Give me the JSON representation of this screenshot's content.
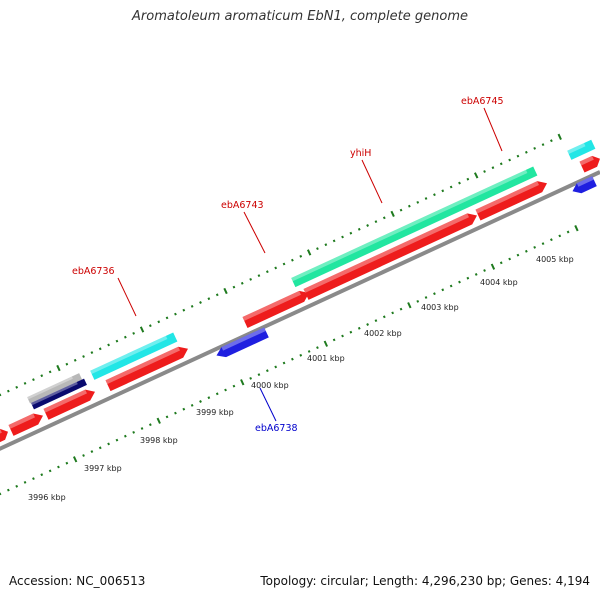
{
  "title": "Aromatoleum aromaticum EbN1, complete genome",
  "footer": {
    "accession": "Accession: NC_006513",
    "topology": "Topology: circular; Length: 4,296,230 bp; Genes: 4,194"
  },
  "colors": {
    "backbone": "#8a8a8a",
    "tick": "#1e7a1e",
    "forward_cds": "#ee1c1c",
    "reverse_cds": "#1f1fe0",
    "rna_gene": "#22e6a0",
    "cyan_feature": "#22e6e6",
    "grey_feature": "#b8b8b8",
    "navy_feature": "#0a0a6e",
    "forward_label": "#cc0000",
    "reverse_label": "#0000cc"
  },
  "scale_labels": [
    "3996 kbp",
    "3997 kbp",
    "3998 kbp",
    "3999 kbp",
    "4000 kbp",
    "4001 kbp",
    "4002 kbp",
    "4003 kbp",
    "4004 kbp",
    "4005 kbp"
  ],
  "gene_labels": [
    {
      "text": "ebA6736",
      "strand": "forward"
    },
    {
      "text": "ebA6743",
      "strand": "forward"
    },
    {
      "text": "yhiH",
      "strand": "forward"
    },
    {
      "text": "ebA6745",
      "strand": "forward"
    },
    {
      "text": "ebA6738",
      "strand": "reverse"
    }
  ]
}
